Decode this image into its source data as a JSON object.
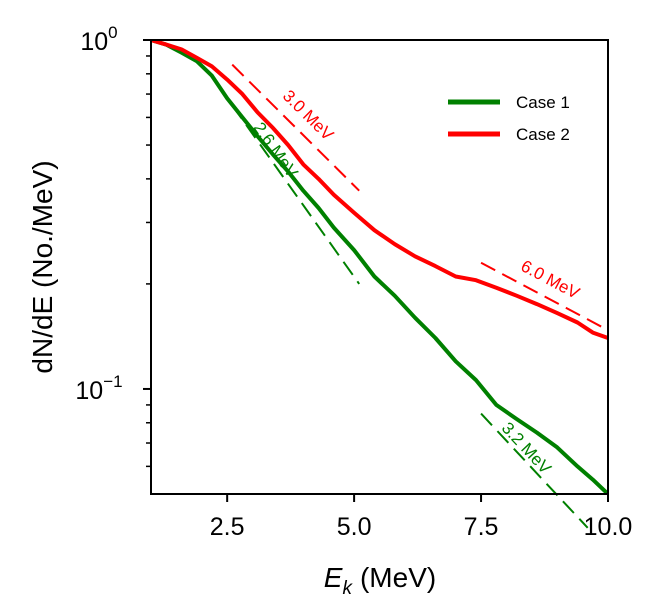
{
  "chart_data": {
    "type": "line",
    "title": "",
    "xlabel_main": "E",
    "xlabel_sub": "k",
    "xlabel_unit": "(MeV)",
    "ylabel": "dN/dE (No./MeV)",
    "xlim": [
      1.0,
      10.0
    ],
    "ylim": [
      0.05,
      1.0
    ],
    "yscale": "log",
    "x_ticks": [
      {
        "value": 2.5,
        "label": "2.5"
      },
      {
        "value": 5.0,
        "label": "5.0"
      },
      {
        "value": 7.5,
        "label": "7.5"
      },
      {
        "value": 10.0,
        "label": "10.0"
      }
    ],
    "y_ticks": [
      {
        "value": 1.0,
        "base": "10",
        "exp": "0"
      },
      {
        "value": 0.1,
        "base": "10",
        "exp": "−1"
      }
    ],
    "legend_position": "top-right",
    "series": [
      {
        "name": "Case 1",
        "color": "#008000",
        "x": [
          1.0,
          1.3,
          1.6,
          1.9,
          2.2,
          2.5,
          2.8,
          3.1,
          3.4,
          3.7,
          4.0,
          4.3,
          4.6,
          5.0,
          5.4,
          5.8,
          6.2,
          6.6,
          7.0,
          7.4,
          7.8,
          8.2,
          8.6,
          9.0,
          9.4,
          9.7,
          10.0
        ],
        "y": [
          1.0,
          0.97,
          0.92,
          0.87,
          0.79,
          0.68,
          0.6,
          0.53,
          0.47,
          0.42,
          0.37,
          0.33,
          0.29,
          0.25,
          0.21,
          0.185,
          0.16,
          0.14,
          0.12,
          0.106,
          0.09,
          0.082,
          0.075,
          0.068,
          0.06,
          0.055,
          0.05
        ]
      },
      {
        "name": "Case 2",
        "color": "#ff0000",
        "x": [
          1.0,
          1.3,
          1.6,
          1.9,
          2.2,
          2.5,
          2.8,
          3.1,
          3.4,
          3.7,
          4.0,
          4.3,
          4.6,
          5.0,
          5.4,
          5.8,
          6.2,
          6.6,
          7.0,
          7.4,
          7.8,
          8.2,
          8.6,
          9.0,
          9.4,
          9.7,
          10.0
        ],
        "y": [
          1.0,
          0.97,
          0.94,
          0.89,
          0.84,
          0.77,
          0.7,
          0.62,
          0.56,
          0.5,
          0.44,
          0.4,
          0.36,
          0.32,
          0.285,
          0.26,
          0.24,
          0.225,
          0.21,
          0.205,
          0.195,
          0.185,
          0.175,
          0.165,
          0.155,
          0.145,
          0.14
        ]
      }
    ],
    "annotations": [
      {
        "text": "3.0 MeV",
        "color": "#ff0000",
        "x": [
          2.6,
          5.1
        ],
        "y": [
          0.85,
          0.37
        ]
      },
      {
        "text": "2.6 MeV",
        "color": "#008000",
        "x": [
          2.6,
          5.1
        ],
        "y": [
          0.65,
          0.2
        ]
      },
      {
        "text": "6.0 MeV",
        "color": "#ff0000",
        "x": [
          7.5,
          9.9
        ],
        "y": [
          0.23,
          0.15
        ]
      },
      {
        "text": "3.2 MeV",
        "color": "#008000",
        "x": [
          7.5,
          9.6
        ],
        "y": [
          0.085,
          0.04
        ]
      }
    ]
  }
}
